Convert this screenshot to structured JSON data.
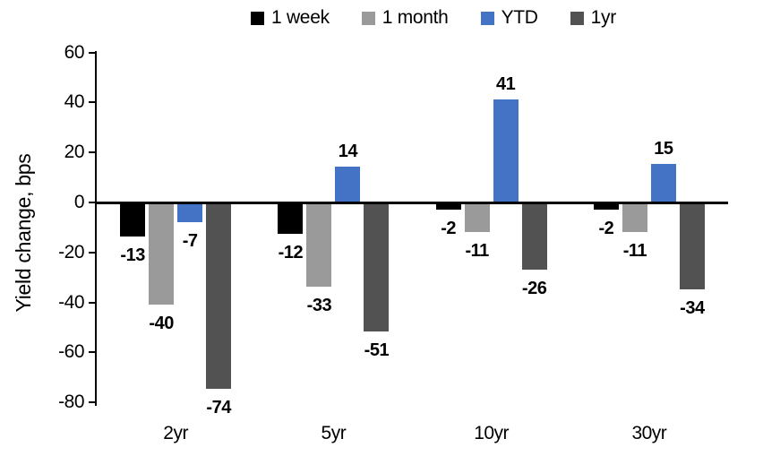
{
  "chart_data": {
    "type": "bar",
    "title": "",
    "ylabel": "Yield change, bps",
    "xlabel": "",
    "ylim": [
      -80,
      60
    ],
    "y_tick_step": 20,
    "y_ticks": [
      60,
      40,
      20,
      0,
      -20,
      -40,
      -60,
      -80
    ],
    "grid": false,
    "legend_position": "top",
    "data_labels": true,
    "categories": [
      "2yr",
      "5yr",
      "10yr",
      "30yr"
    ],
    "series": [
      {
        "name": "1 week",
        "color": "#000000",
        "values": [
          -13,
          -12,
          -2,
          -2
        ]
      },
      {
        "name": "1 month",
        "color": "#9A9A9A",
        "values": [
          -40,
          -33,
          -11,
          -11
        ]
      },
      {
        "name": "YTD",
        "color": "#4472C4",
        "values": [
          -7,
          14,
          41,
          15
        ]
      },
      {
        "name": "1yr",
        "color": "#525252",
        "values": [
          -74,
          -51,
          -26,
          -34
        ]
      }
    ]
  }
}
